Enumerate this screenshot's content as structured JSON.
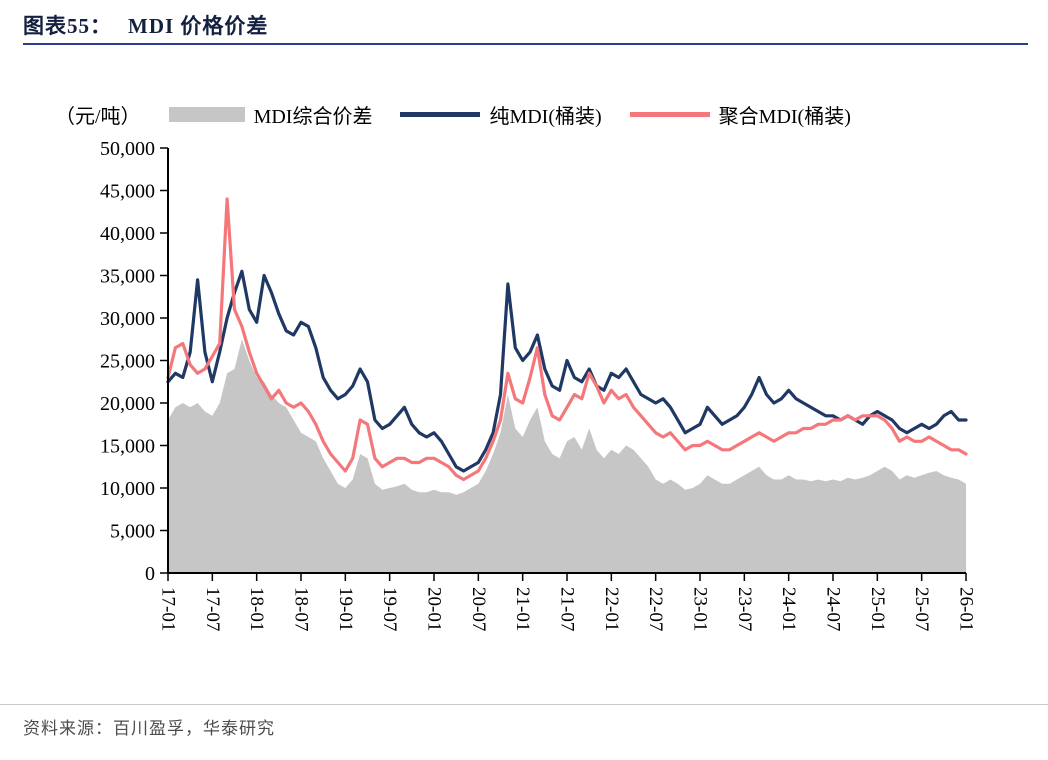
{
  "header": {
    "chart_label": "图表55：",
    "chart_title": "MDI 价格价差"
  },
  "footer": {
    "source": "资料来源：百川盈孚，华泰研究"
  },
  "colors": {
    "title_text": "#13203f",
    "title_rule": "#2a3f8f",
    "axis": "#000000",
    "area_gray": "#C6C6C6",
    "pure_mdi_navy": "#1F3864",
    "poly_mdi_pink": "#F4787B",
    "source_text": "#4d4d4d",
    "footer_rule": "#c9c9c9"
  },
  "chart_data": {
    "type": "line",
    "title": "MDI 价格价差",
    "unit_label": "（元/吨）",
    "xlabel": "",
    "ylabel": "",
    "ylim": [
      0,
      50000
    ],
    "ytick_step": 5000,
    "grid": false,
    "legend_position": "top",
    "ytick_labels": [
      "0",
      "5,000",
      "10,000",
      "15,000",
      "20,000",
      "25,000",
      "30,000",
      "35,000",
      "40,000",
      "45,000",
      "50,000"
    ],
    "xtick_labels": [
      "17-01",
      "17-07",
      "18-01",
      "18-07",
      "19-01",
      "19-07",
      "20-01",
      "20-07",
      "21-01",
      "21-07",
      "22-01",
      "22-07",
      "23-01",
      "23-07",
      "24-01",
      "24-07",
      "25-01",
      "25-07",
      "26-01"
    ],
    "x": [
      "17-01",
      "17-02",
      "17-03",
      "17-04",
      "17-05",
      "17-06",
      "17-07",
      "17-08",
      "17-09",
      "17-10",
      "17-11",
      "17-12",
      "18-01",
      "18-02",
      "18-03",
      "18-04",
      "18-05",
      "18-06",
      "18-07",
      "18-08",
      "18-09",
      "18-10",
      "18-11",
      "18-12",
      "19-01",
      "19-02",
      "19-03",
      "19-04",
      "19-05",
      "19-06",
      "19-07",
      "19-08",
      "19-09",
      "19-10",
      "19-11",
      "19-12",
      "20-01",
      "20-02",
      "20-03",
      "20-04",
      "20-05",
      "20-06",
      "20-07",
      "20-08",
      "20-09",
      "20-10",
      "20-11",
      "20-12",
      "21-01",
      "21-02",
      "21-03",
      "21-04",
      "21-05",
      "21-06",
      "21-07",
      "21-08",
      "21-09",
      "21-10",
      "21-11",
      "21-12",
      "22-01",
      "22-02",
      "22-03",
      "22-04",
      "22-05",
      "22-06",
      "22-07",
      "22-08",
      "22-09",
      "22-10",
      "22-11",
      "22-12",
      "23-01",
      "23-02",
      "23-03",
      "23-04",
      "23-05",
      "23-06",
      "23-07",
      "23-08",
      "23-09",
      "23-10",
      "23-11",
      "23-12",
      "24-01",
      "24-02",
      "24-03",
      "24-04",
      "24-05",
      "24-06",
      "24-07",
      "24-08",
      "24-09",
      "24-10",
      "24-11",
      "24-12",
      "25-01",
      "25-02",
      "25-03",
      "25-04",
      "25-05",
      "25-06",
      "25-07",
      "25-08",
      "25-09",
      "25-10",
      "25-11",
      "25-12",
      "26-01"
    ],
    "series": [
      {
        "name": "MDI综合价差",
        "type": "area",
        "color": "#C6C6C6",
        "values": [
          18000,
          19500,
          20000,
          19500,
          20000,
          19000,
          18500,
          20000,
          23500,
          24000,
          27500,
          25000,
          23000,
          22500,
          21000,
          20000,
          19500,
          18000,
          16500,
          16000,
          15500,
          13500,
          12000,
          10500,
          10000,
          11000,
          14000,
          13500,
          10500,
          9800,
          10000,
          10200,
          10500,
          9800,
          9500,
          9500,
          9800,
          9500,
          9500,
          9200,
          9500,
          10000,
          10500,
          12000,
          14000,
          16500,
          21000,
          17000,
          16000,
          18000,
          19500,
          15500,
          14000,
          13500,
          15500,
          16000,
          14500,
          17000,
          14500,
          13500,
          14500,
          14000,
          15000,
          14500,
          13500,
          12500,
          11000,
          10500,
          11000,
          10500,
          9800,
          10000,
          10500,
          11500,
          11000,
          10500,
          10500,
          11000,
          11500,
          12000,
          12500,
          11500,
          11000,
          11000,
          11500,
          11000,
          11000,
          10800,
          11000,
          10800,
          11000,
          10800,
          11200,
          11000,
          11200,
          11500,
          12000,
          12500,
          12000,
          11000,
          11500,
          11200,
          11500,
          11800,
          12000,
          11500,
          11200,
          11000,
          10500
        ]
      },
      {
        "name": "纯MDI(桶装)",
        "type": "line",
        "color": "#1F3864",
        "values": [
          22500,
          23500,
          23000,
          26000,
          34500,
          26000,
          22500,
          26000,
          30000,
          33000,
          35500,
          31000,
          29500,
          35000,
          33000,
          30500,
          28500,
          28000,
          29500,
          29000,
          26500,
          23000,
          21500,
          20500,
          21000,
          22000,
          24000,
          22500,
          18000,
          17000,
          17500,
          18500,
          19500,
          17500,
          16500,
          16000,
          16500,
          15500,
          14000,
          12500,
          12000,
          12500,
          13000,
          14500,
          16500,
          21000,
          34000,
          26500,
          25000,
          26000,
          28000,
          24000,
          22000,
          21500,
          25000,
          23000,
          22500,
          24000,
          22000,
          21500,
          23500,
          23000,
          24000,
          22500,
          21000,
          20500,
          20000,
          20500,
          19500,
          18000,
          16500,
          17000,
          17500,
          19500,
          18500,
          17500,
          18000,
          18500,
          19500,
          21000,
          23000,
          21000,
          20000,
          20500,
          21500,
          20500,
          20000,
          19500,
          19000,
          18500,
          18500,
          18000,
          18500,
          18000,
          17500,
          18500,
          19000,
          18500,
          18000,
          17000,
          16500,
          17000,
          17500,
          17000,
          17500,
          18500,
          19000,
          18000,
          18000
        ]
      },
      {
        "name": "聚合MDI(桶装)",
        "type": "line",
        "color": "#F4787B",
        "values": [
          23000,
          26500,
          27000,
          24500,
          23500,
          24000,
          25500,
          27000,
          44000,
          31000,
          29000,
          26000,
          23500,
          22000,
          20500,
          21500,
          20000,
          19500,
          20000,
          19000,
          17500,
          15500,
          14000,
          13000,
          12000,
          13500,
          18000,
          17500,
          13500,
          12500,
          13000,
          13500,
          13500,
          13000,
          13000,
          13500,
          13500,
          13000,
          12500,
          11500,
          11000,
          11500,
          12000,
          13500,
          15500,
          18000,
          23500,
          20500,
          20000,
          23000,
          26500,
          21000,
          18500,
          18000,
          19500,
          21000,
          20500,
          23500,
          22000,
          20000,
          21500,
          20500,
          21000,
          19500,
          18500,
          17500,
          16500,
          16000,
          16500,
          15500,
          14500,
          15000,
          15000,
          15500,
          15000,
          14500,
          14500,
          15000,
          15500,
          16000,
          16500,
          16000,
          15500,
          16000,
          16500,
          16500,
          17000,
          17000,
          17500,
          17500,
          18000,
          18000,
          18500,
          18000,
          18500,
          18500,
          18500,
          18000,
          17000,
          15500,
          16000,
          15500,
          15500,
          16000,
          15500,
          15000,
          14500,
          14500,
          14000
        ]
      }
    ]
  }
}
